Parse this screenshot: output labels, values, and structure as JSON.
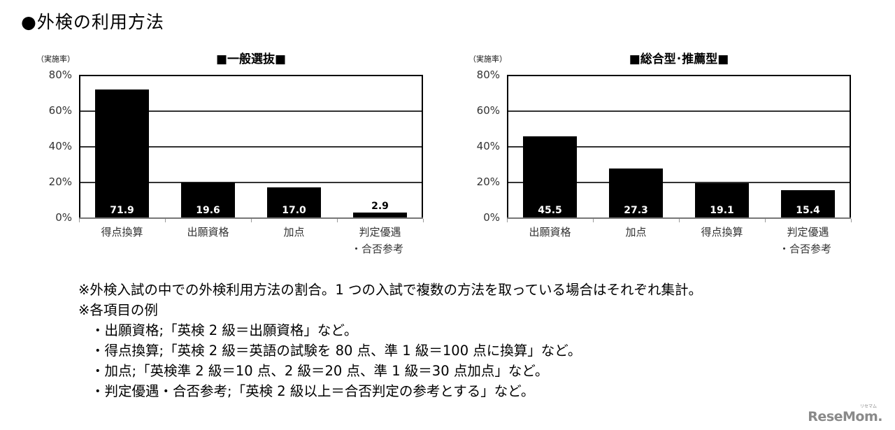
{
  "page": {
    "title": "●外検の利用方法",
    "logo": "ReseMom.",
    "logo_ruby": "リセマム"
  },
  "charts": [
    {
      "title": "■一般選抜■",
      "unit": "（実施率）",
      "yticks": [
        "80%",
        "60%",
        "40%",
        "20%",
        "0%"
      ],
      "categories": [
        "得点換算",
        "出願資格",
        "加点",
        "判定優遇\n・合否参考"
      ],
      "values": [
        71.9,
        19.6,
        17.0,
        2.9
      ],
      "labels": [
        "71.9",
        "19.6",
        "17.0",
        "2.9"
      ]
    },
    {
      "title": "■総合型･推薦型■",
      "unit": "（実施率）",
      "yticks": [
        "80%",
        "60%",
        "40%",
        "20%",
        "0%"
      ],
      "categories": [
        "出願資格",
        "加点",
        "得点換算",
        "判定優遇\n・合否参考"
      ],
      "values": [
        45.5,
        27.3,
        19.1,
        15.4
      ],
      "labels": [
        "45.5",
        "27.3",
        "19.1",
        "15.4"
      ]
    }
  ],
  "notes": {
    "line1": "※外検入試の中での外検利用方法の割合。1 つの入試で複数の方法を取っている場合はそれぞれ集計。",
    "line2": "※各項目の例",
    "items": [
      "・出願資格;「英検 2 級＝出願資格」など。",
      "・得点換算;「英検 2 級＝英語の試験を 80 点、準 1 級＝100 点に換算」など。",
      "・加点;「英検準 2 級＝10 点、2 級＝20 点、準 1 級＝30 点加点」など。",
      "・判定優遇・合否参考;「英検 2 級以上＝合否判定の参考とする」など。"
    ]
  },
  "colors": {
    "bar": "#000000",
    "grid": "#333333",
    "text": "#000000",
    "logo": "#8a8a8a"
  },
  "chart_data": [
    {
      "type": "bar",
      "title": "■一般選抜■",
      "xlabel": "",
      "ylabel": "（実施率）",
      "ylim": [
        0,
        80
      ],
      "yticks": [
        "0%",
        "20%",
        "40%",
        "60%",
        "80%"
      ],
      "grid": true,
      "categories": [
        "得点換算",
        "出願資格",
        "加点",
        "判定優遇・合否参考"
      ],
      "values": [
        71.9,
        19.6,
        17.0,
        2.9
      ]
    },
    {
      "type": "bar",
      "title": "■総合型･推薦型■",
      "xlabel": "",
      "ylabel": "（実施率）",
      "ylim": [
        0,
        80
      ],
      "yticks": [
        "0%",
        "20%",
        "40%",
        "60%",
        "80%"
      ],
      "grid": true,
      "categories": [
        "出願資格",
        "加点",
        "得点換算",
        "判定優遇・合否参考"
      ],
      "values": [
        45.5,
        27.3,
        19.1,
        15.4
      ]
    }
  ]
}
